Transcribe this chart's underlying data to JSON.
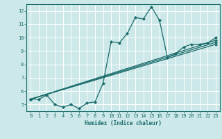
{
  "xlabel": "Humidex (Indice chaleur)",
  "ylabel": "",
  "xlim": [
    -0.5,
    23.5
  ],
  "ylim": [
    4.5,
    12.5
  ],
  "yticks": [
    5,
    6,
    7,
    8,
    9,
    10,
    11,
    12
  ],
  "xticks": [
    0,
    1,
    2,
    3,
    4,
    5,
    6,
    7,
    8,
    9,
    10,
    11,
    12,
    13,
    14,
    15,
    16,
    17,
    18,
    19,
    20,
    21,
    22,
    23
  ],
  "bg_color": "#cce8e8",
  "line_color": "#1a6b6b",
  "grid_color": "#ffffff",
  "lines": [
    {
      "x": [
        0,
        1,
        2,
        3,
        4,
        5,
        6,
        7,
        8,
        9,
        10,
        11,
        12,
        13,
        14,
        15,
        16,
        17,
        18,
        19,
        20,
        21,
        22,
        23
      ],
      "y": [
        5.4,
        5.4,
        5.7,
        5.0,
        4.8,
        5.0,
        4.7,
        5.1,
        5.2,
        6.6,
        9.7,
        9.6,
        10.3,
        11.5,
        11.4,
        12.3,
        11.3,
        8.5,
        8.8,
        9.3,
        9.5,
        9.5,
        9.6,
        10.0
      ]
    },
    {
      "x": [
        0,
        23
      ],
      "y": [
        5.4,
        9.5
      ]
    },
    {
      "x": [
        0,
        23
      ],
      "y": [
        5.4,
        9.65
      ]
    },
    {
      "x": [
        0,
        23
      ],
      "y": [
        5.4,
        9.8
      ]
    }
  ]
}
